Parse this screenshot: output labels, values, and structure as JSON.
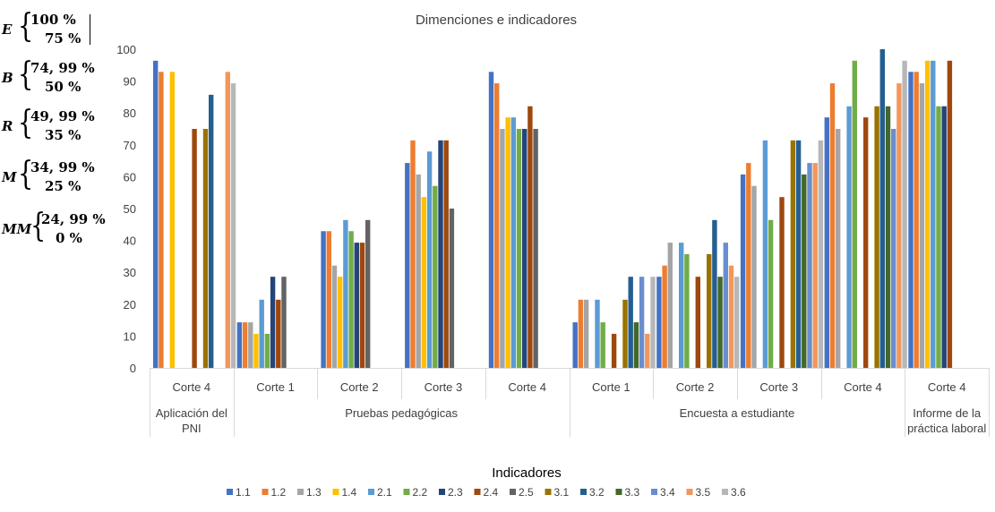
{
  "chart_data": {
    "type": "bar",
    "title": "Dimenciones e indicadores",
    "legend_title": "Indicadores",
    "legend_position": "bottom",
    "ylim": [
      0,
      100
    ],
    "y_ticks": [
      0,
      10,
      20,
      30,
      40,
      50,
      60,
      70,
      80,
      90,
      100
    ],
    "grid": false,
    "series_names": [
      "1.1",
      "1.2",
      "1.3",
      "1.4",
      "2.1",
      "2.2",
      "2.3",
      "2.4",
      "2.5",
      "3.1",
      "3.2",
      "3.3",
      "3.4",
      "3.5",
      "3.6"
    ],
    "series_colors": [
      "#4472C4",
      "#ED7D31",
      "#A5A5A5",
      "#FFC000",
      "#5B9BD5",
      "#70AD47",
      "#264478",
      "#9E480E",
      "#636363",
      "#997300",
      "#255E91",
      "#43682B",
      "#698ED0",
      "#F1975A",
      "#B7B7B7"
    ],
    "groups": [
      {
        "name": "Aplicación del PNI",
        "name_lines": [
          "Aplicación del",
          "PNI"
        ],
        "categories": [
          {
            "label": "Corte 4",
            "values": {
              "1.1": 96.4,
              "1.2": 92.9,
              "1.4": 92.9,
              "2.4": 75,
              "3.1": 75,
              "3.2": 85.7,
              "3.5": 92.9,
              "3.6": 89.3
            }
          }
        ]
      },
      {
        "name": "Pruebas pedagógicas",
        "name_lines": [
          "Pruebas pedagógicas"
        ],
        "categories": [
          {
            "label": "Corte 1",
            "values": {
              "1.1": 14.3,
              "1.2": 14.3,
              "1.3": 14.3,
              "1.4": 10.7,
              "2.1": 21.4,
              "2.2": 10.7,
              "2.3": 28.6,
              "2.4": 21.4,
              "2.5": 28.6
            }
          },
          {
            "label": "Corte 2",
            "values": {
              "1.1": 42.9,
              "1.2": 42.9,
              "1.3": 32.1,
              "1.4": 28.6,
              "2.1": 46.4,
              "2.2": 42.9,
              "2.3": 39.3,
              "2.4": 39.3,
              "2.5": 46.4
            }
          },
          {
            "label": "Corte 3",
            "values": {
              "1.1": 64.3,
              "1.2": 71.4,
              "1.3": 60.7,
              "1.4": 53.6,
              "2.1": 67.9,
              "2.2": 57.1,
              "2.3": 71.4,
              "2.4": 71.4,
              "2.5": 50
            }
          },
          {
            "label": "Corte 4",
            "values": {
              "1.1": 92.9,
              "1.2": 89.3,
              "1.3": 75,
              "1.4": 78.6,
              "2.1": 78.6,
              "2.2": 75,
              "2.3": 75,
              "2.4": 82.1,
              "2.5": 75
            }
          }
        ]
      },
      {
        "name": "Encuesta a estudiante",
        "name_lines": [
          "Encuesta a estudiante"
        ],
        "categories": [
          {
            "label": "Corte 1",
            "values": {
              "1.1": 14.3,
              "1.2": 21.4,
              "1.3": 21.4,
              "2.1": 21.4,
              "2.2": 14.3,
              "2.4": 10.7,
              "3.1": 21.4,
              "3.2": 28.6,
              "3.3": 14.3,
              "3.4": 28.6,
              "3.5": 10.7,
              "3.6": 28.6
            }
          },
          {
            "label": "Corte 2",
            "values": {
              "1.1": 28.6,
              "1.2": 32.1,
              "1.3": 39.3,
              "2.1": 39.3,
              "2.2": 35.7,
              "2.4": 28.6,
              "3.1": 35.7,
              "3.2": 46.4,
              "3.3": 28.6,
              "3.4": 39.3,
              "3.5": 32.1,
              "3.6": 28.6
            }
          },
          {
            "label": "Corte 3",
            "values": {
              "1.1": 60.7,
              "1.2": 64.3,
              "1.3": 57.1,
              "2.1": 71.4,
              "2.2": 46.4,
              "2.4": 53.6,
              "3.1": 71.4,
              "3.2": 71.4,
              "3.3": 60.7,
              "3.4": 64.3,
              "3.5": 64.3,
              "3.6": 71.4
            }
          },
          {
            "label": "Corte 4",
            "values": {
              "1.1": 78.6,
              "1.2": 89.3,
              "1.3": 75,
              "2.1": 82.1,
              "2.2": 96.4,
              "2.4": 78.6,
              "3.1": 82.1,
              "3.2": 100,
              "3.3": 82.1,
              "3.4": 75,
              "3.5": 89.3,
              "3.6": 96.4
            }
          }
        ]
      },
      {
        "name": "Informe de la práctica laboral",
        "name_lines": [
          "Informe de la",
          "práctica laboral"
        ],
        "categories": [
          {
            "label": "Corte 4",
            "values": {
              "1.1": 92.9,
              "1.2": 92.9,
              "1.3": 89.3,
              "1.4": 96.4,
              "2.1": 96.4,
              "2.2": 82.1,
              "2.3": 82.1,
              "2.4": 96.4
            }
          }
        ]
      }
    ]
  },
  "scale_legend": [
    {
      "letter": "E",
      "upper": "100 %",
      "lower": "75 %"
    },
    {
      "letter": "B",
      "upper": "74, 99 %",
      "lower": "50 %"
    },
    {
      "letter": "R",
      "upper": "49, 99 %",
      "lower": "35 %"
    },
    {
      "letter": "M",
      "upper": "34, 99 %",
      "lower": "25 %"
    },
    {
      "letter": "MM",
      "upper": "24, 99 %",
      "lower": "0 %"
    }
  ]
}
